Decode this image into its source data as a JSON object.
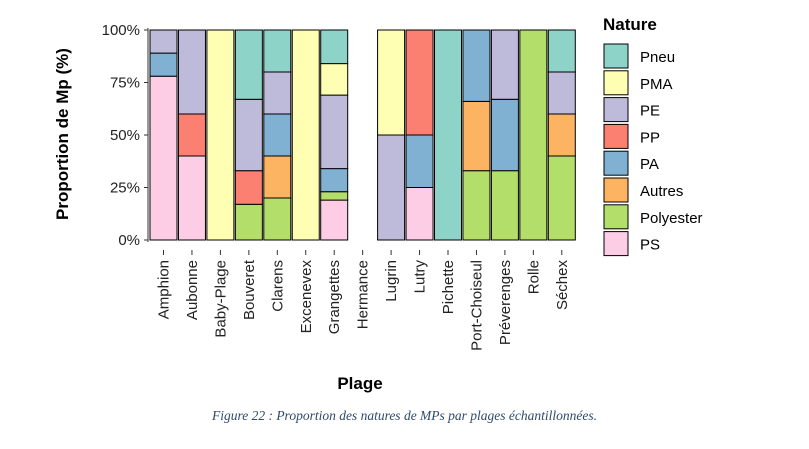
{
  "chart_data": {
    "type": "bar",
    "stacked": true,
    "ylabel": "Proportion de Mp (%)",
    "xlabel": "Plage",
    "ylim": [
      0,
      100
    ],
    "yticks": [
      "0%",
      "25%",
      "50%",
      "75%",
      "100%"
    ],
    "yticks_values": [
      0,
      25,
      50,
      75,
      100
    ],
    "categories": [
      "Amphion",
      "Aubonne",
      "Baby-Plage",
      "Bouveret",
      "Clarens",
      "Excenevex",
      "Grangettes",
      "Hermance",
      "Lugrin",
      "Lutry",
      "Pichette",
      "Port-Choiseul",
      "Préverenges",
      "Rolle",
      "Séchex"
    ],
    "legend_title": "Nature",
    "legend_position": "right",
    "series": [
      {
        "name": "PS",
        "color": "#fccde5",
        "values": [
          78,
          40,
          0,
          0,
          0,
          0,
          19,
          0,
          0,
          25,
          0,
          0,
          0,
          0,
          0
        ]
      },
      {
        "name": "Polyester",
        "color": "#b3de69",
        "values": [
          0,
          0,
          0,
          17,
          20,
          0,
          4,
          0,
          0,
          0,
          0,
          33,
          33,
          100,
          40
        ]
      },
      {
        "name": "Autres",
        "color": "#fdb462",
        "values": [
          0,
          0,
          0,
          0,
          20,
          0,
          0,
          0,
          0,
          0,
          0,
          33,
          0,
          0,
          20
        ]
      },
      {
        "name": "PA",
        "color": "#80b1d3",
        "values": [
          11,
          0,
          0,
          0,
          20,
          0,
          11,
          0,
          0,
          25,
          0,
          34,
          34,
          0,
          0
        ]
      },
      {
        "name": "PP",
        "color": "#fb8072",
        "values": [
          0,
          20,
          0,
          16,
          0,
          0,
          0,
          0,
          0,
          50,
          0,
          0,
          0,
          0,
          0
        ]
      },
      {
        "name": "PE",
        "color": "#bebada",
        "values": [
          11,
          40,
          0,
          34,
          20,
          0,
          35,
          0,
          50,
          0,
          0,
          0,
          33,
          0,
          20
        ]
      },
      {
        "name": "PMA",
        "color": "#ffffb3",
        "values": [
          0,
          0,
          100,
          0,
          0,
          100,
          15,
          0,
          50,
          0,
          0,
          0,
          0,
          0,
          0
        ]
      },
      {
        "name": "Pneu",
        "color": "#8dd3c7",
        "values": [
          0,
          0,
          0,
          33,
          20,
          0,
          16,
          0,
          0,
          0,
          100,
          0,
          0,
          0,
          20
        ]
      }
    ],
    "legend_order": [
      "Pneu",
      "PMA",
      "PE",
      "PP",
      "PA",
      "Autres",
      "Polyester",
      "PS"
    ]
  },
  "caption": "Figure 22 : Proportion des natures de MPs par plages échantillonnées."
}
